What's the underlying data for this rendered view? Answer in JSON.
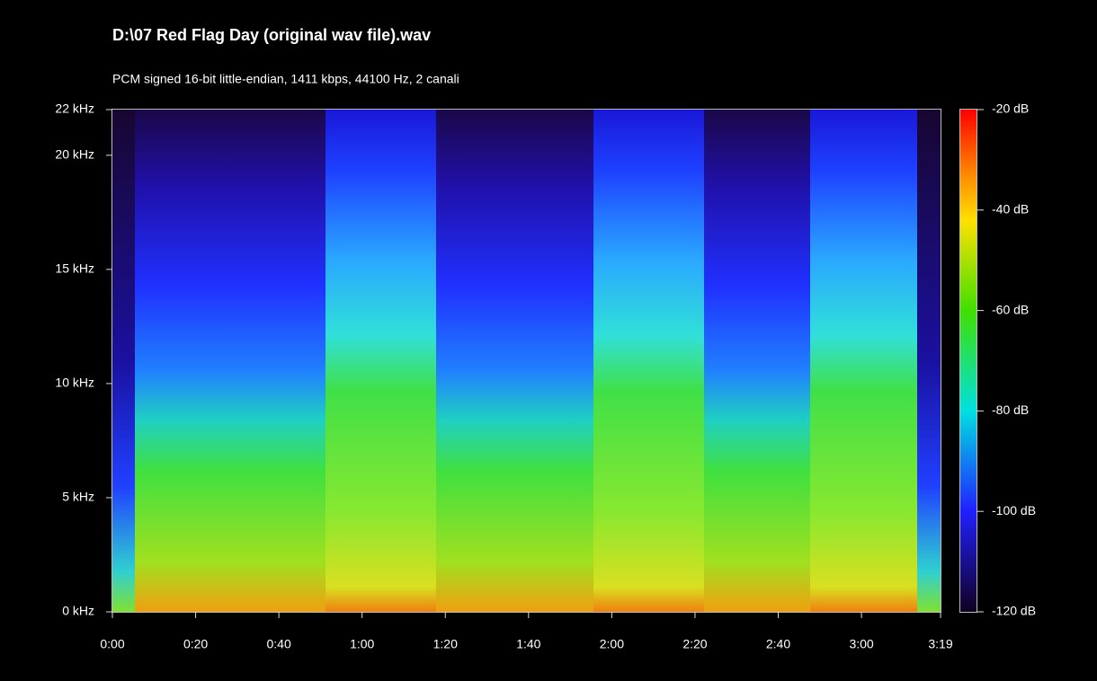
{
  "chart_data": {
    "type": "spectrogram",
    "title": "D:\\07 Red Flag Day (original wav file).wav",
    "subtitle": "PCM signed 16-bit little-endian, 1411 kbps, 44100 Hz, 2 canali",
    "xlim": [
      0,
      199
    ],
    "xticks": [
      {
        "value": 0,
        "label": "0:00"
      },
      {
        "value": 20,
        "label": "0:20"
      },
      {
        "value": 40,
        "label": "0:40"
      },
      {
        "value": 60,
        "label": "1:00"
      },
      {
        "value": 80,
        "label": "1:20"
      },
      {
        "value": 100,
        "label": "1:40"
      },
      {
        "value": 120,
        "label": "2:00"
      },
      {
        "value": 140,
        "label": "2:20"
      },
      {
        "value": 160,
        "label": "2:40"
      },
      {
        "value": 180,
        "label": "3:00"
      },
      {
        "value": 199,
        "label": "3:19"
      }
    ],
    "ylim": [
      0,
      22
    ],
    "yticks": [
      {
        "value": 0,
        "label": "0 kHz"
      },
      {
        "value": 5,
        "label": "5 kHz"
      },
      {
        "value": 10,
        "label": "10 kHz"
      },
      {
        "value": 15,
        "label": "15 kHz"
      },
      {
        "value": 20,
        "label": "20 kHz"
      },
      {
        "value": 22,
        "label": "22 kHz"
      }
    ],
    "clim": [
      -120,
      -20
    ],
    "cticks": [
      {
        "value": -20,
        "label": "-20 dB"
      },
      {
        "value": -40,
        "label": "-40 dB"
      },
      {
        "value": -60,
        "label": "-60 dB"
      },
      {
        "value": -80,
        "label": "-80 dB"
      },
      {
        "value": -100,
        "label": "-100 dB"
      },
      {
        "value": -120,
        "label": "-120 dB"
      }
    ]
  }
}
